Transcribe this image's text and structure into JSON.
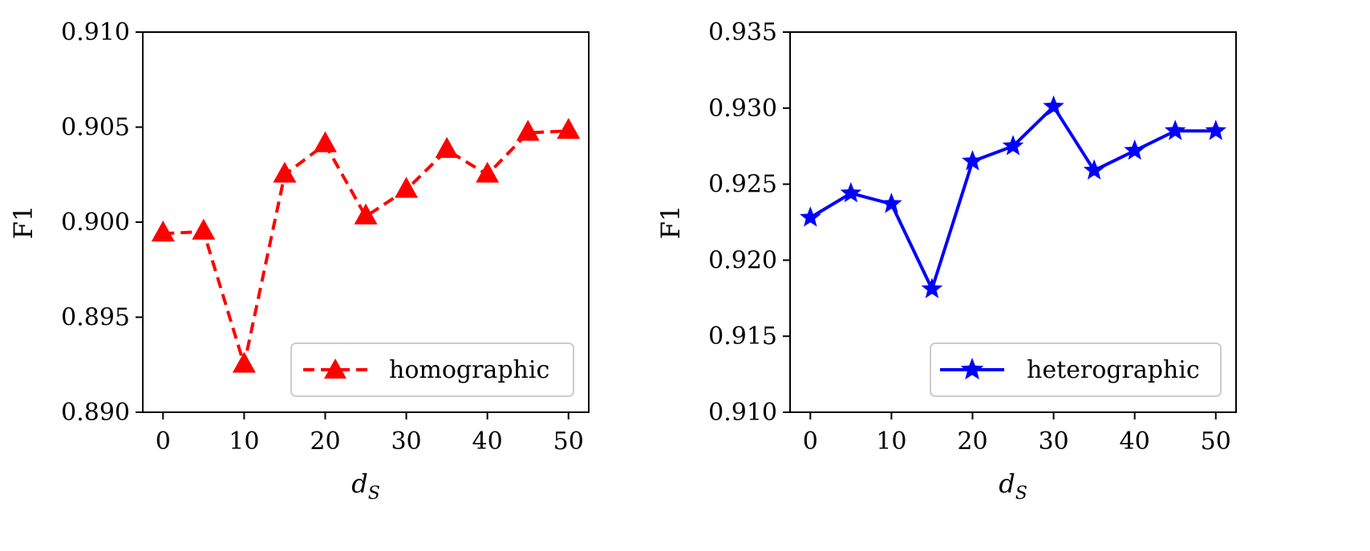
{
  "chart_data": [
    {
      "type": "line",
      "title": "",
      "xlabel": "d",
      "xlabel_sub": "S",
      "ylabel": "F1",
      "xlim": [
        -2.5,
        52.5
      ],
      "ylim": [
        0.89,
        0.91
      ],
      "xticks": [
        0,
        10,
        20,
        30,
        40,
        50
      ],
      "yticks": [
        0.89,
        0.895,
        0.9,
        0.905,
        0.91
      ],
      "ytick_labels": [
        "0.890",
        "0.895",
        "0.900",
        "0.905",
        "0.910"
      ],
      "grid": false,
      "legend_position": "lower-right",
      "series": [
        {
          "name": "homographic",
          "color": "#ff0000",
          "line_style": "dashed",
          "marker": "triangle",
          "x": [
            0,
            5,
            10,
            15,
            20,
            25,
            30,
            35,
            40,
            45,
            50
          ],
          "values": [
            0.8994,
            0.8995,
            0.8925,
            0.9025,
            0.9041,
            0.9003,
            0.9017,
            0.9038,
            0.9025,
            0.9047,
            0.9048
          ]
        }
      ]
    },
    {
      "type": "line",
      "title": "",
      "xlabel": "d",
      "xlabel_sub": "S",
      "ylabel": "F1",
      "xlim": [
        -2.5,
        52.5
      ],
      "ylim": [
        0.91,
        0.935
      ],
      "xticks": [
        0,
        10,
        20,
        30,
        40,
        50
      ],
      "yticks": [
        0.91,
        0.915,
        0.92,
        0.925,
        0.93,
        0.935
      ],
      "ytick_labels": [
        "0.910",
        "0.915",
        "0.920",
        "0.925",
        "0.930",
        "0.935"
      ],
      "grid": false,
      "legend_position": "lower-right",
      "series": [
        {
          "name": "heterographic",
          "color": "#0000ff",
          "line_style": "solid",
          "marker": "star",
          "x": [
            0,
            5,
            10,
            15,
            20,
            25,
            30,
            35,
            40,
            45,
            50
          ],
          "values": [
            0.9228,
            0.9244,
            0.9237,
            0.9181,
            0.9265,
            0.9275,
            0.9301,
            0.9259,
            0.9272,
            0.9285,
            0.9285
          ]
        }
      ]
    }
  ]
}
